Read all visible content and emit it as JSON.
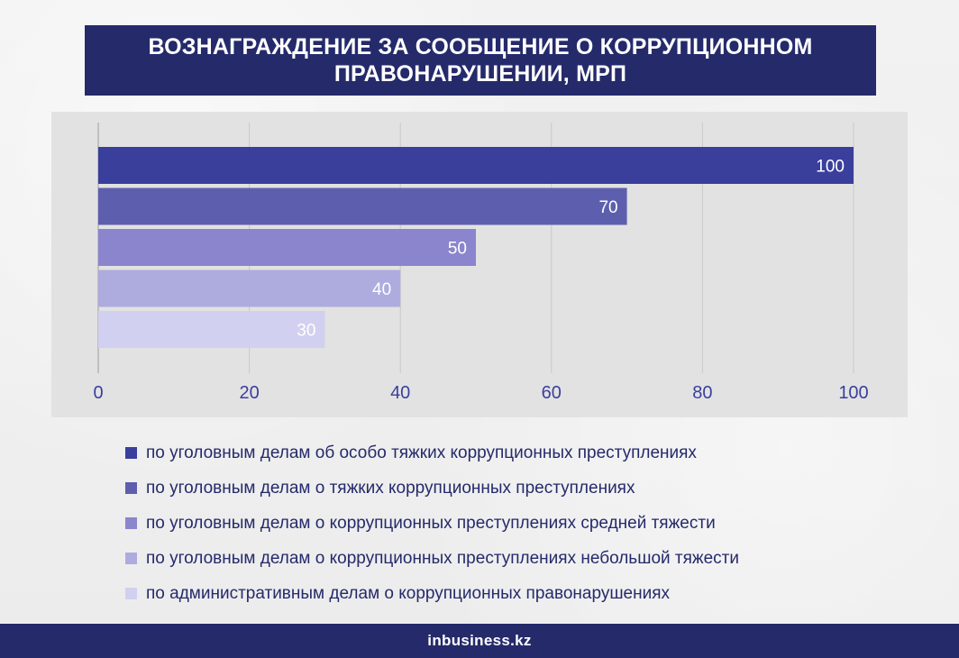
{
  "title": {
    "line1": "ВОЗНАГРАЖДЕНИЕ ЗА СООБЩЕНИЕ О КОРРУПЦИОННОМ",
    "line2": "ПРАВОНАРУШЕНИИ, МРП"
  },
  "chart_data": {
    "type": "bar",
    "orientation": "horizontal",
    "title": "ВОЗНАГРАЖДЕНИЕ ЗА СООБЩЕНИЕ О КОРРУПЦИОННОМ ПРАВОНАРУШЕНИИ, МРП",
    "categories": [
      "по уголовным делам об особо тяжких коррупционных преступлениях",
      "по уголовным делам о тяжких коррупционных преступлениях",
      "по уголовным делам о коррупционных преступлениях средней тяжести",
      "по уголовным делам о коррупционных преступлениях небольшой тяжести",
      "по административным делам о коррупционных правонарушениях"
    ],
    "values": [
      100,
      70,
      50,
      40,
      30
    ],
    "value_labels": [
      "100",
      "70",
      "50",
      "40",
      "30"
    ],
    "colors": [
      "#3a3f9c",
      "#5d5fae",
      "#8a85cc",
      "#aeabdf",
      "#d2d0f0"
    ],
    "xlim": [
      0,
      100
    ],
    "xticks": [
      0,
      20,
      40,
      60,
      80,
      100
    ],
    "xtick_labels": [
      "0",
      "20",
      "40",
      "60",
      "80",
      "100"
    ],
    "xlabel": "",
    "ylabel": "",
    "grid": true,
    "legend_position": "bottom"
  },
  "legend": {
    "items": [
      "по уголовным делам об особо тяжких коррупционных преступлениях",
      "по уголовным делам о тяжких коррупционных преступлениях",
      "по уголовным делам о коррупционных преступлениях средней тяжести",
      "по уголовным делам о коррупционных преступлениях небольшой тяжести",
      "по административным делам о коррупционных правонарушениях"
    ]
  },
  "footer": {
    "logo": "inbusiness.kz"
  },
  "colors": {
    "navy": "#252a6b",
    "panel": "#e2e2e2",
    "tick_text": "#3a3f9c"
  }
}
